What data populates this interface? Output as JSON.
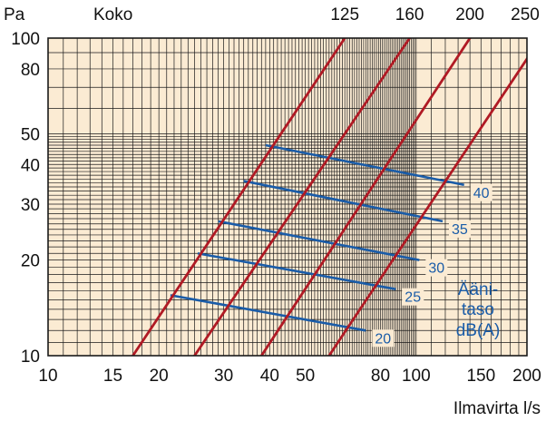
{
  "chart_data": {
    "type": "line",
    "x_scale": "log",
    "y_scale": "log",
    "xlim": [
      10,
      200
    ],
    "ylim": [
      10,
      100
    ],
    "xlabel": "Ilmavirta l/s",
    "ylabel": "Pa",
    "x_ticks": [
      10,
      15,
      20,
      30,
      40,
      50,
      80,
      100,
      150,
      200
    ],
    "y_ticks": [
      10,
      20,
      30,
      40,
      50,
      80,
      100
    ],
    "size_header": "Koko",
    "size_series": [
      {
        "name": "125",
        "points": [
          [
            17,
            10
          ],
          [
            64,
            100
          ]
        ]
      },
      {
        "name": "160",
        "points": [
          [
            25,
            10
          ],
          [
            96,
            100
          ]
        ]
      },
      {
        "name": "200",
        "points": [
          [
            38,
            10
          ],
          [
            140,
            100
          ]
        ]
      },
      {
        "name": "250",
        "points": [
          [
            58,
            10
          ],
          [
            200,
            86
          ]
        ]
      }
    ],
    "sound_level_title": [
      "Ääni-",
      "taso",
      "dB(A)"
    ],
    "sound_level_series": [
      {
        "name": "20",
        "points": [
          [
            21.5,
            15.5
          ],
          [
            73,
            12
          ]
        ]
      },
      {
        "name": "25",
        "points": [
          [
            25.5,
            21
          ],
          [
            88,
            16.2
          ]
        ]
      },
      {
        "name": "30",
        "points": [
          [
            29,
            26.5
          ],
          [
            102,
            20
          ]
        ]
      },
      {
        "name": "35",
        "points": [
          [
            34,
            35.5
          ],
          [
            118,
            26.5
          ]
        ]
      },
      {
        "name": "40",
        "points": [
          [
            39,
            46
          ],
          [
            135,
            34.5
          ]
        ]
      }
    ],
    "grid": true,
    "colors": {
      "background": "#fbebd3",
      "grid": "#1a1a1a",
      "size_lines": "#b01a24",
      "sound_lines": "#1a5ca8",
      "sound_labels": "#1a5ca8"
    }
  }
}
